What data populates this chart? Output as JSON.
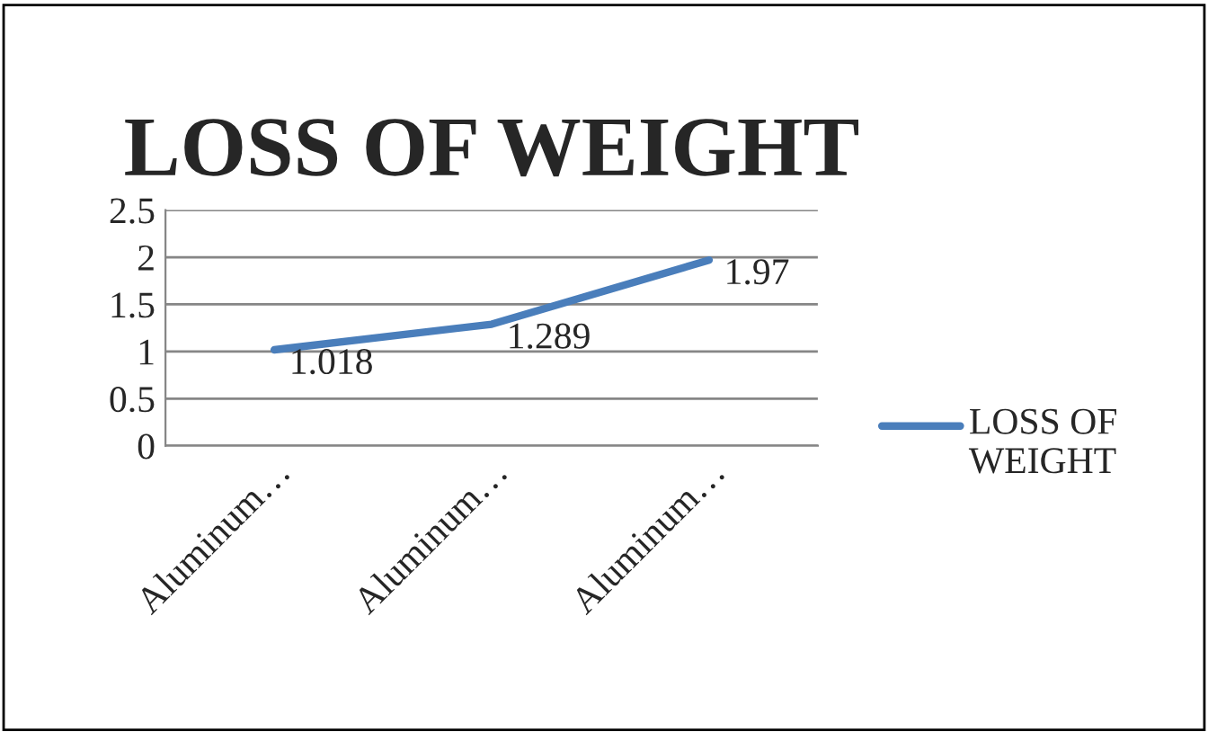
{
  "chart_data": {
    "type": "line",
    "title": "LOSS OF WEIGHT",
    "categories": [
      "Aluminum…",
      "Aluminum…",
      "Aluminum…"
    ],
    "series": [
      {
        "name": "LOSS OF WEIGHT",
        "color": "#4a7ebb",
        "values": [
          1.018,
          1.289,
          1.97
        ]
      }
    ],
    "ylim": [
      0,
      2.5
    ],
    "yticks": [
      0,
      0.5,
      1,
      1.5,
      2,
      2.5
    ],
    "grid": "y",
    "legend": "right",
    "data_labels": true,
    "marker": "none",
    "line_style": "solid"
  }
}
